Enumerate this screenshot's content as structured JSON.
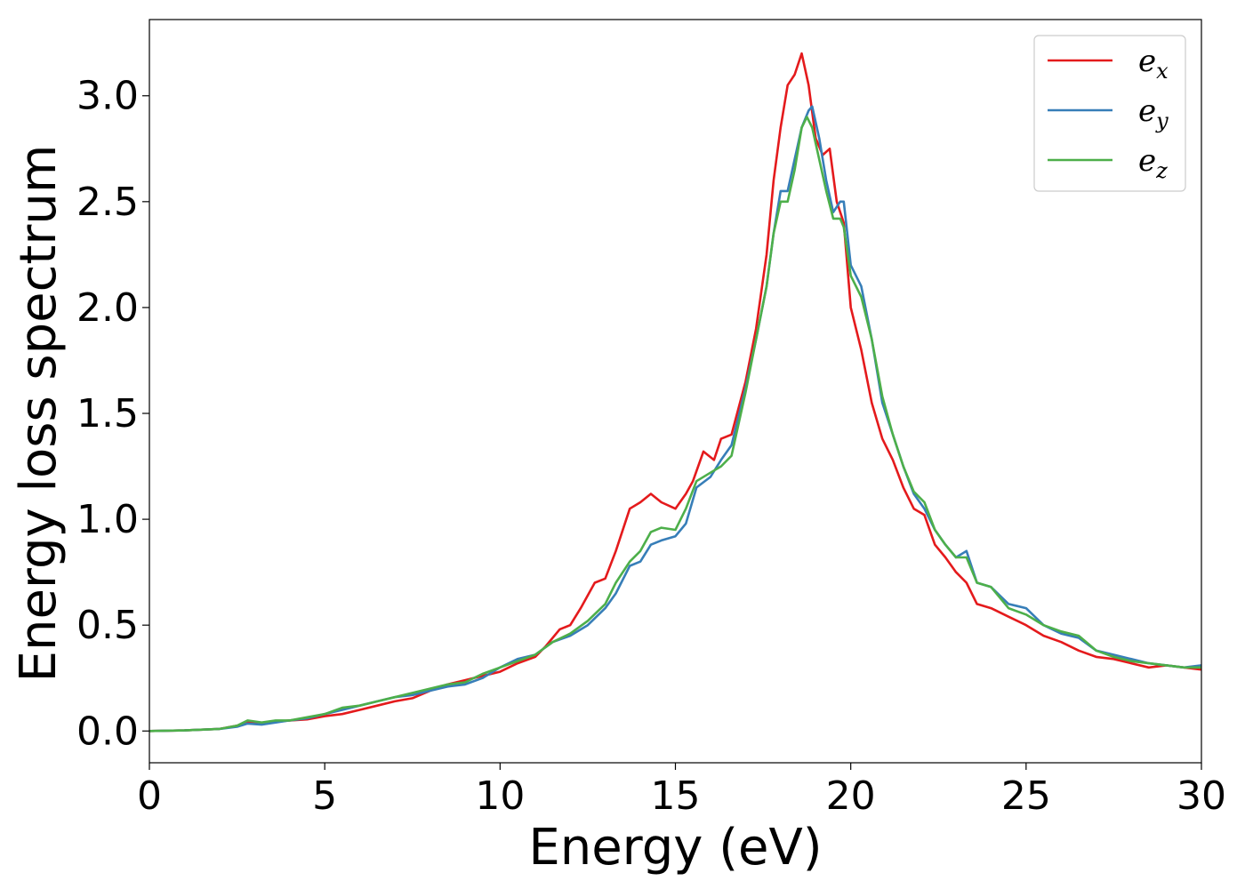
{
  "chart_data": {
    "type": "line",
    "title": "",
    "xlabel": "Energy (eV)",
    "ylabel": "Energy loss spectrum",
    "xlim": [
      0,
      30
    ],
    "ylim": [
      -0.15,
      3.36
    ],
    "xticks": [
      0,
      5,
      10,
      15,
      20,
      25,
      30
    ],
    "yticks": [
      "0.0",
      "0.5",
      "1.0",
      "1.5",
      "2.0",
      "2.5",
      "3.0"
    ],
    "grid": false,
    "legend_position": "top-right",
    "series": [
      {
        "name": "e",
        "subscript": "x",
        "color": "#e41a1c",
        "x": [
          0,
          1,
          2,
          2.5,
          2.8,
          3.2,
          3.6,
          4,
          4.5,
          5,
          5.5,
          6,
          6.5,
          7,
          7.5,
          8,
          8.5,
          9,
          9.5,
          10,
          10.5,
          11,
          11.3,
          11.7,
          12,
          12.3,
          12.7,
          13,
          13.3,
          13.7,
          14,
          14.3,
          14.6,
          15,
          15.3,
          15.5,
          15.8,
          16.1,
          16.3,
          16.6,
          17,
          17.3,
          17.6,
          17.8,
          18,
          18.2,
          18.4,
          18.6,
          18.8,
          19,
          19.2,
          19.4,
          19.6,
          19.8,
          20,
          20.3,
          20.6,
          20.9,
          21.2,
          21.5,
          21.8,
          22.1,
          22.4,
          22.7,
          23,
          23.3,
          23.6,
          24,
          24.5,
          25,
          25.5,
          26,
          26.5,
          27,
          27.5,
          28,
          28.5,
          29,
          29.5,
          30
        ],
        "y": [
          0,
          0.003,
          0.01,
          0.025,
          0.045,
          0.035,
          0.045,
          0.05,
          0.055,
          0.07,
          0.08,
          0.1,
          0.12,
          0.14,
          0.155,
          0.19,
          0.22,
          0.24,
          0.26,
          0.28,
          0.32,
          0.35,
          0.4,
          0.48,
          0.5,
          0.58,
          0.7,
          0.72,
          0.85,
          1.05,
          1.08,
          1.12,
          1.08,
          1.05,
          1.12,
          1.18,
          1.32,
          1.28,
          1.38,
          1.4,
          1.65,
          1.9,
          2.25,
          2.6,
          2.85,
          3.05,
          3.1,
          3.2,
          3.05,
          2.8,
          2.72,
          2.75,
          2.5,
          2.4,
          2.0,
          1.8,
          1.55,
          1.38,
          1.28,
          1.15,
          1.05,
          1.02,
          0.88,
          0.82,
          0.75,
          0.7,
          0.6,
          0.58,
          0.54,
          0.5,
          0.45,
          0.42,
          0.38,
          0.35,
          0.34,
          0.32,
          0.3,
          0.31,
          0.3,
          0.29
        ]
      },
      {
        "name": "e",
        "subscript": "y",
        "color": "#377eb8",
        "x": [
          0,
          1,
          2,
          2.5,
          2.8,
          3.2,
          3.6,
          4,
          4.5,
          5,
          5.5,
          6,
          6.5,
          7,
          7.5,
          8,
          8.5,
          9,
          9.5,
          10,
          10.5,
          11,
          11.5,
          12,
          12.5,
          13,
          13.3,
          13.7,
          14,
          14.3,
          14.6,
          15,
          15.3,
          15.6,
          16,
          16.3,
          16.6,
          17,
          17.3,
          17.6,
          17.8,
          18,
          18.2,
          18.4,
          18.6,
          18.8,
          18.9,
          19.1,
          19.3,
          19.5,
          19.7,
          19.8,
          20,
          20.3,
          20.6,
          20.9,
          21.2,
          21.5,
          21.8,
          22.1,
          22.4,
          22.7,
          23,
          23.3,
          23.6,
          24,
          24.5,
          25,
          25.5,
          26,
          26.5,
          27,
          27.5,
          28,
          28.5,
          29,
          29.5,
          30
        ],
        "y": [
          0,
          0.003,
          0.01,
          0.02,
          0.035,
          0.03,
          0.04,
          0.05,
          0.06,
          0.08,
          0.1,
          0.12,
          0.14,
          0.16,
          0.17,
          0.19,
          0.21,
          0.22,
          0.25,
          0.3,
          0.34,
          0.36,
          0.42,
          0.45,
          0.5,
          0.58,
          0.65,
          0.78,
          0.8,
          0.88,
          0.9,
          0.92,
          0.98,
          1.15,
          1.2,
          1.28,
          1.35,
          1.62,
          1.85,
          2.1,
          2.35,
          2.55,
          2.55,
          2.7,
          2.85,
          2.93,
          2.95,
          2.8,
          2.6,
          2.45,
          2.5,
          2.5,
          2.2,
          2.1,
          1.85,
          1.55,
          1.4,
          1.25,
          1.12,
          1.05,
          0.95,
          0.88,
          0.82,
          0.85,
          0.7,
          0.68,
          0.6,
          0.58,
          0.5,
          0.46,
          0.44,
          0.38,
          0.36,
          0.34,
          0.32,
          0.31,
          0.3,
          0.31
        ]
      },
      {
        "name": "e",
        "subscript": "z",
        "color": "#4daf4a",
        "x": [
          0,
          1,
          2,
          2.5,
          2.8,
          3.2,
          3.6,
          4,
          4.5,
          5,
          5.5,
          6,
          6.5,
          7,
          7.5,
          8,
          8.5,
          9,
          9.5,
          10,
          10.5,
          11,
          11.5,
          12,
          12.5,
          13,
          13.3,
          13.7,
          14,
          14.3,
          14.6,
          15,
          15.3,
          15.6,
          16,
          16.3,
          16.6,
          17,
          17.3,
          17.6,
          17.8,
          18,
          18.2,
          18.4,
          18.6,
          18.75,
          18.9,
          19.1,
          19.3,
          19.5,
          19.7,
          19.8,
          20,
          20.3,
          20.6,
          20.9,
          21.2,
          21.5,
          21.8,
          22.1,
          22.4,
          22.7,
          23,
          23.3,
          23.6,
          24,
          24.5,
          25,
          25.5,
          26,
          26.5,
          27,
          27.5,
          28,
          28.5,
          29,
          29.5,
          30
        ],
        "y": [
          0,
          0.003,
          0.01,
          0.025,
          0.05,
          0.04,
          0.05,
          0.05,
          0.065,
          0.08,
          0.11,
          0.12,
          0.14,
          0.16,
          0.18,
          0.2,
          0.22,
          0.23,
          0.27,
          0.3,
          0.33,
          0.36,
          0.42,
          0.46,
          0.52,
          0.6,
          0.7,
          0.8,
          0.85,
          0.94,
          0.96,
          0.95,
          1.05,
          1.18,
          1.22,
          1.25,
          1.3,
          1.6,
          1.85,
          2.1,
          2.35,
          2.5,
          2.5,
          2.65,
          2.85,
          2.9,
          2.85,
          2.7,
          2.55,
          2.42,
          2.42,
          2.38,
          2.15,
          2.05,
          1.85,
          1.58,
          1.4,
          1.25,
          1.13,
          1.08,
          0.95,
          0.88,
          0.82,
          0.82,
          0.7,
          0.68,
          0.58,
          0.55,
          0.5,
          0.47,
          0.45,
          0.38,
          0.35,
          0.33,
          0.32,
          0.31,
          0.3,
          0.3
        ]
      }
    ]
  }
}
